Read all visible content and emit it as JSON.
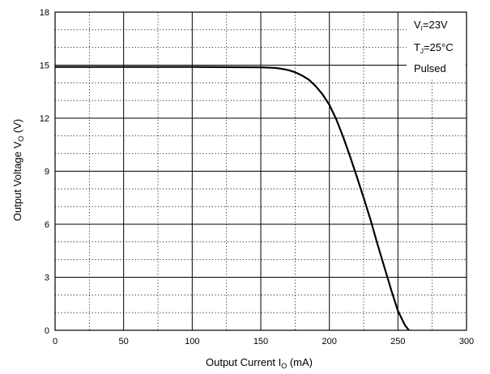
{
  "chart_data": {
    "type": "line",
    "title": "",
    "xlabel": "Output Current",
    "xlabel_symbol": "I",
    "xlabel_symbol_sub": "O",
    "xlabel_unit": "(mA)",
    "ylabel": "Output Voltage",
    "ylabel_symbol": "V",
    "ylabel_symbol_sub": "O",
    "ylabel_unit": "(V)",
    "xlim": [
      0,
      300
    ],
    "ylim": [
      0,
      18
    ],
    "x_ticks": [
      0,
      50,
      100,
      150,
      200,
      250,
      300
    ],
    "y_ticks": [
      0,
      3,
      6,
      9,
      12,
      15,
      18
    ],
    "x_tick_labels": [
      "0",
      "50",
      "100",
      "150",
      "200",
      "250",
      "300"
    ],
    "y_tick_labels": [
      "0",
      "3",
      "6",
      "9",
      "12",
      "15",
      "18"
    ],
    "grid": {
      "major": true,
      "minor_dotted": true,
      "x_minor_step": 25,
      "y_minor_step": 1
    },
    "annotations": [
      {
        "main": "V",
        "sub": "I",
        "rest": "=23V"
      },
      {
        "main": "T",
        "sub": "J",
        "rest": "=25°C"
      },
      {
        "main": "Pulsed",
        "sub": "",
        "rest": ""
      }
    ],
    "series": [
      {
        "color": "#000000",
        "x": [
          0,
          100,
          150,
          160,
          165,
          170,
          175,
          180,
          185,
          190,
          195,
          200,
          205,
          210,
          215,
          220,
          225,
          230,
          235,
          240,
          245,
          250,
          255,
          258
        ],
        "y": [
          14.9,
          14.9,
          14.88,
          14.85,
          14.8,
          14.72,
          14.6,
          14.42,
          14.18,
          13.82,
          13.35,
          12.75,
          11.95,
          10.95,
          9.85,
          8.7,
          7.5,
          6.25,
          4.9,
          3.6,
          2.3,
          1.1,
          0.3,
          0.0
        ]
      }
    ]
  }
}
